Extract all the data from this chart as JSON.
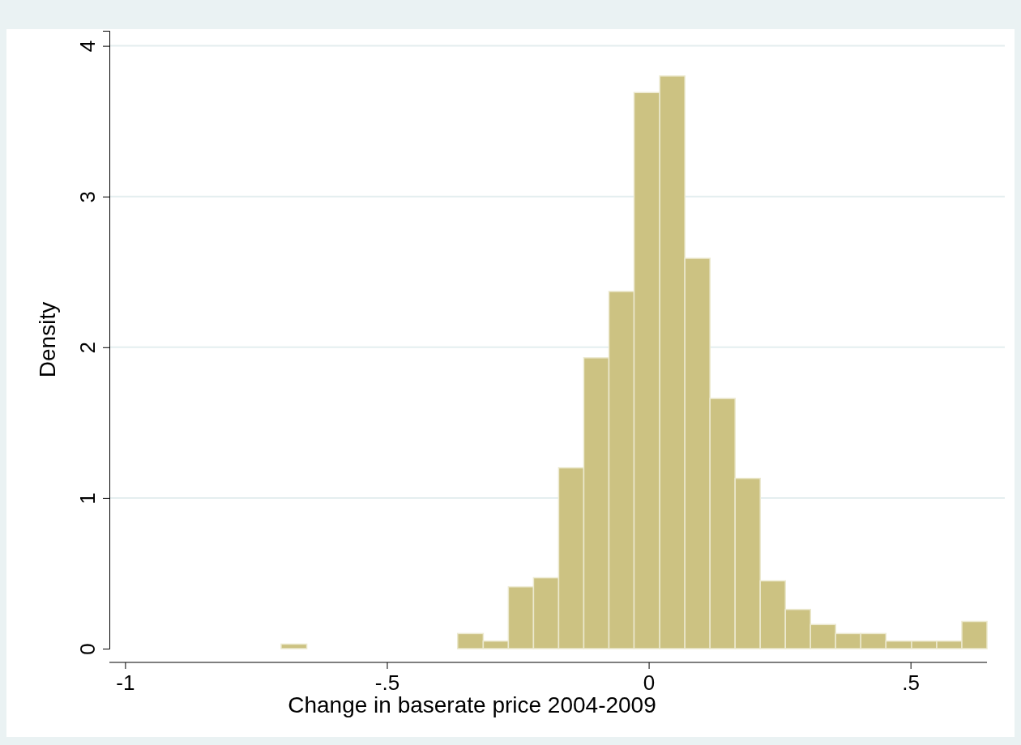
{
  "chart_data": {
    "type": "histogram",
    "xlabel": "Change in baserate price 2004-2009",
    "ylabel": "Density",
    "bins": [
      -0.702,
      -0.653,
      -0.365,
      -0.316,
      -0.268,
      -0.22,
      -0.172,
      -0.124,
      -0.076,
      -0.028,
      0.021,
      0.069,
      0.117,
      0.165,
      0.213,
      0.261,
      0.309,
      0.357,
      0.405,
      0.453,
      0.502,
      0.55,
      0.598,
      0.646
    ],
    "values": [
      0.03,
      0,
      0.1,
      0.05,
      0.41,
      0.47,
      1.2,
      1.93,
      2.37,
      3.69,
      3.8,
      2.59,
      1.66,
      1.13,
      0.45,
      0.26,
      0.16,
      0.1,
      0.1,
      0.05,
      0.05,
      0.05,
      0.18
    ],
    "color": "#ccc282",
    "xlim": [
      -1.03,
      0.68
    ],
    "ylim": [
      0,
      4.1
    ],
    "xticks": [
      {
        "value": -1,
        "label": "-1"
      },
      {
        "value": -0.5,
        "label": "-.5"
      },
      0,
      {
        "value": 0.5,
        "label": ".5"
      }
    ],
    "yticks": [
      0,
      1,
      2,
      3,
      4
    ],
    "grid": "y"
  }
}
